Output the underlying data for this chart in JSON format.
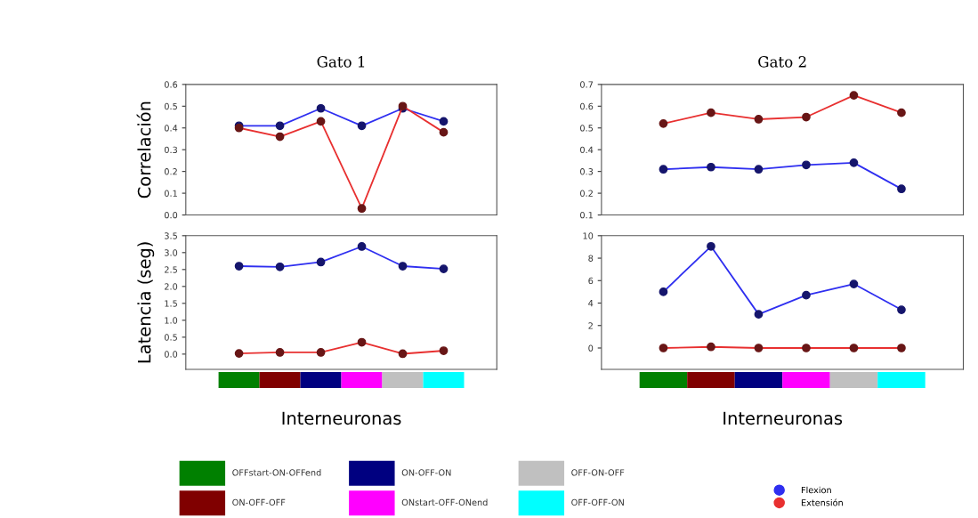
{
  "chart_data": [
    {
      "type": "line",
      "title": "Gato 1",
      "ylabel": "Correlación",
      "categories": [
        null,
        null,
        null,
        null,
        null,
        null
      ],
      "marker": "circle",
      "tick_labels": "y",
      "ylim": [
        0,
        0.6
      ],
      "yticks": [
        {
          "value": 0,
          "label": "0.0"
        },
        0.1,
        0.2,
        0.3,
        0.4,
        0.5,
        0.6
      ],
      "series": [
        {
          "color": "#2f2ff0",
          "values": [
            0.41,
            0.41,
            0.49,
            0.41,
            0.49,
            0.43
          ]
        },
        {
          "color": "#e83030",
          "values": [
            0.4,
            0.36,
            0.43,
            0.03,
            0.5,
            0.38
          ]
        }
      ]
    },
    {
      "type": "line",
      "title": "Gato 2",
      "categories": [
        null,
        null,
        null,
        null,
        null,
        null
      ],
      "marker": "circle",
      "tick_labels": "y",
      "ylim": [
        0.1,
        0.7
      ],
      "yticks": [
        0.1,
        0.2,
        0.3,
        0.4,
        0.5,
        0.6,
        0.7
      ],
      "series": [
        {
          "color": "#2f2ff0",
          "values": [
            0.31,
            0.32,
            0.31,
            0.33,
            0.34,
            0.22
          ]
        },
        {
          "color": "#e83030",
          "values": [
            0.52,
            0.57,
            0.54,
            0.55,
            0.65,
            0.57
          ]
        }
      ]
    },
    {
      "type": "line",
      "ylabel": "Latencia (seg)",
      "xlabel": "Interneuronas",
      "categories": [
        null,
        null,
        null,
        null,
        null,
        null
      ],
      "colors": [
        "#008000",
        "#800000",
        "#000080",
        "#ff00ff",
        "#c0c0c0",
        "#00ffff"
      ],
      "legend": "bottom right",
      "marker": "circle",
      "tick_labels": "y",
      "ylim": [
        -0.45,
        3.5
      ],
      "yticks": [
        {
          "value": 0,
          "label": "0.0"
        },
        0.5,
        {
          "value": 1,
          "label": "1.0"
        },
        1.5,
        {
          "value": 2,
          "label": "2.0"
        },
        2.5,
        {
          "value": 3,
          "label": "3.0"
        },
        3.5
      ],
      "series": [
        {
          "name": "Flexion",
          "color": "#2f2ff0",
          "values": [
            2.6,
            2.58,
            2.72,
            3.18,
            2.6,
            2.52
          ]
        },
        {
          "name": "Extensión",
          "color": "#e83030",
          "values": [
            0.02,
            0.05,
            0.05,
            0.35,
            0.01,
            0.1
          ]
        }
      ]
    },
    {
      "type": "line",
      "xlabel": "Interneuronas",
      "categories": [
        null,
        null,
        null,
        null,
        null,
        null
      ],
      "colors": [
        "#008000",
        "#800000",
        "#000080",
        "#ff00ff",
        "#c0c0c0",
        "#00ffff"
      ],
      "marker": "circle",
      "tick_labels": "y",
      "ylim": [
        -1.9,
        10
      ],
      "yticks": [
        0,
        2,
        4,
        6,
        8,
        10
      ],
      "series": [
        {
          "color": "#2f2ff0",
          "values": [
            5.0,
            9.05,
            3.0,
            4.7,
            5.7,
            3.4
          ]
        },
        {
          "color": "#e83030",
          "values": [
            0,
            0.1,
            0,
            0,
            0,
            0
          ]
        }
      ]
    },
    {
      "type": "other",
      "categories": [
        "OFFstart-ON-OFFend",
        "ON-OFF-OFF",
        "ON-OFF-ON",
        "ONstart-OFF-ONend",
        "OFF-ON-OFF",
        "OFF-OFF-ON"
      ],
      "colors": [
        "#008000",
        "#800000",
        "#000080",
        "#ff00ff",
        "#c0c0c0",
        "#00ffff"
      ]
    }
  ]
}
